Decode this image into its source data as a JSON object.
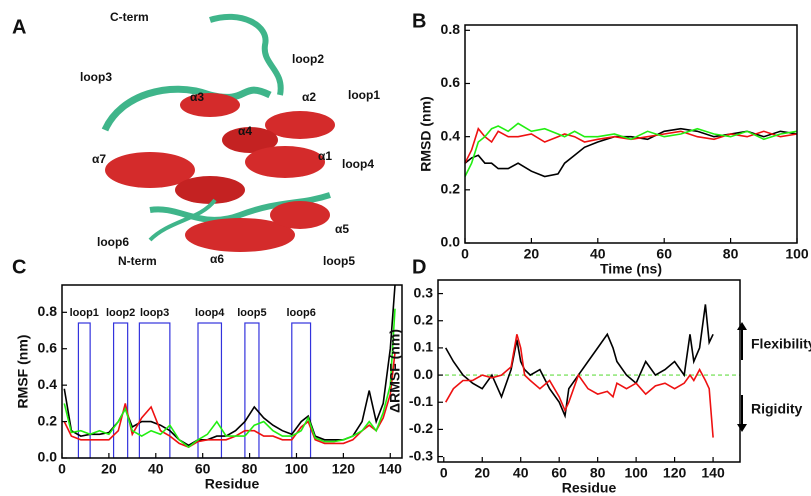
{
  "panel_labels": [
    "A",
    "B",
    "C",
    "D"
  ],
  "structure": {
    "labels": [
      "C-term",
      "loop2",
      "loop3",
      "α3",
      "α2",
      "loop1",
      "α4",
      "α1",
      "α7",
      "loop4",
      "α5",
      "loop6",
      "N-term",
      "α6",
      "loop5"
    ]
  },
  "chart_data": [
    {
      "type": "line",
      "xlabel": "Time (ns)",
      "ylabel": "RMSD (nm)",
      "xlim": [
        0,
        100
      ],
      "ylim": [
        0,
        0.82
      ],
      "xticks": [
        0,
        20,
        40,
        60,
        80,
        100
      ],
      "yticks": [
        {
          "value": 0,
          "label": "0.0"
        },
        0.2,
        0.4,
        0.6,
        0.8
      ],
      "x": [
        0,
        2,
        4,
        6,
        8,
        10,
        13,
        16,
        20,
        24,
        28,
        30,
        33,
        36,
        40,
        45,
        50,
        55,
        60,
        65,
        70,
        75,
        80,
        85,
        90,
        95,
        100
      ],
      "series": [
        {
          "color": "#000000",
          "values": [
            0.3,
            0.32,
            0.33,
            0.3,
            0.3,
            0.28,
            0.28,
            0.3,
            0.27,
            0.25,
            0.26,
            0.3,
            0.33,
            0.36,
            0.38,
            0.4,
            0.4,
            0.39,
            0.42,
            0.43,
            0.42,
            0.4,
            0.41,
            0.42,
            0.4,
            0.42,
            0.41
          ]
        },
        {
          "color": "#ee1111",
          "values": [
            0.3,
            0.35,
            0.43,
            0.4,
            0.38,
            0.42,
            0.4,
            0.4,
            0.41,
            0.38,
            0.4,
            0.41,
            0.4,
            0.38,
            0.39,
            0.4,
            0.39,
            0.4,
            0.41,
            0.42,
            0.4,
            0.39,
            0.41,
            0.4,
            0.42,
            0.4,
            0.41
          ]
        },
        {
          "color": "#22ee11",
          "values": [
            0.25,
            0.3,
            0.38,
            0.4,
            0.43,
            0.44,
            0.42,
            0.45,
            0.42,
            0.43,
            0.41,
            0.4,
            0.42,
            0.4,
            0.4,
            0.41,
            0.39,
            0.42,
            0.4,
            0.41,
            0.43,
            0.41,
            0.4,
            0.42,
            0.39,
            0.41,
            0.42
          ]
        }
      ]
    },
    {
      "type": "line",
      "xlabel": "Residue",
      "ylabel": "RMSF (nm)",
      "xlim": [
        0,
        145
      ],
      "ylim": [
        0,
        0.95
      ],
      "xticks": [
        0,
        20,
        40,
        60,
        80,
        100,
        120,
        140
      ],
      "yticks": [
        {
          "value": 0,
          "label": "0.0"
        },
        0.2,
        0.4,
        0.6,
        0.8
      ],
      "x": [
        1,
        4,
        8,
        12,
        16,
        20,
        24,
        27,
        30,
        34,
        38,
        42,
        46,
        50,
        54,
        58,
        62,
        66,
        70,
        74,
        78,
        82,
        86,
        90,
        94,
        98,
        102,
        105,
        108,
        112,
        116,
        120,
        124,
        128,
        131,
        134,
        137,
        140,
        142
      ],
      "series": [
        {
          "color": "#000000",
          "values": [
            0.38,
            0.15,
            0.12,
            0.13,
            0.13,
            0.14,
            0.2,
            0.27,
            0.17,
            0.2,
            0.2,
            0.18,
            0.15,
            0.1,
            0.07,
            0.1,
            0.1,
            0.12,
            0.12,
            0.15,
            0.2,
            0.28,
            0.22,
            0.18,
            0.15,
            0.13,
            0.2,
            0.23,
            0.12,
            0.1,
            0.1,
            0.1,
            0.12,
            0.2,
            0.37,
            0.2,
            0.3,
            0.6,
            0.95
          ]
        },
        {
          "color": "#ee1111",
          "values": [
            0.2,
            0.12,
            0.1,
            0.1,
            0.1,
            0.1,
            0.15,
            0.3,
            0.13,
            0.22,
            0.28,
            0.15,
            0.12,
            0.08,
            0.06,
            0.09,
            0.1,
            0.1,
            0.1,
            0.12,
            0.15,
            0.15,
            0.12,
            0.12,
            0.1,
            0.1,
            0.17,
            0.2,
            0.1,
            0.08,
            0.08,
            0.08,
            0.1,
            0.15,
            0.18,
            0.15,
            0.22,
            0.35,
            0.58
          ]
        },
        {
          "color": "#22ee11",
          "values": [
            0.3,
            0.14,
            0.15,
            0.13,
            0.15,
            0.13,
            0.2,
            0.27,
            0.15,
            0.12,
            0.15,
            0.13,
            0.18,
            0.1,
            0.06,
            0.1,
            0.13,
            0.2,
            0.12,
            0.12,
            0.12,
            0.18,
            0.2,
            0.15,
            0.12,
            0.12,
            0.15,
            0.22,
            0.11,
            0.09,
            0.09,
            0.1,
            0.12,
            0.15,
            0.2,
            0.15,
            0.25,
            0.4,
            0.82
          ]
        }
      ],
      "regions": [
        {
          "label": "loop1",
          "start": 7,
          "end": 12
        },
        {
          "label": "loop2",
          "start": 22,
          "end": 28
        },
        {
          "label": "loop3",
          "start": 33,
          "end": 46
        },
        {
          "label": "loop4",
          "start": 58,
          "end": 68
        },
        {
          "label": "loop5",
          "start": 78,
          "end": 84
        },
        {
          "label": "loop6",
          "start": 98,
          "end": 106
        }
      ],
      "region_color": "#3333dd"
    },
    {
      "type": "line",
      "xlabel": "Residue",
      "ylabel": "ΔRMSF (nm)",
      "xlim": [
        -3,
        154
      ],
      "ylim": [
        -0.32,
        0.35
      ],
      "xticks": [
        0,
        20,
        40,
        60,
        80,
        100,
        120,
        140
      ],
      "yticks": [
        -0.3,
        -0.2,
        -0.1,
        {
          "value": 0,
          "label": "0.0"
        },
        0.1,
        0.2,
        0.3
      ],
      "x": [
        1,
        5,
        10,
        15,
        20,
        25,
        30,
        35,
        38,
        40,
        42,
        45,
        50,
        55,
        60,
        63,
        65,
        70,
        75,
        80,
        85,
        88,
        90,
        95,
        100,
        105,
        110,
        115,
        120,
        125,
        128,
        130,
        133,
        136,
        138,
        140
      ],
      "series": [
        {
          "color": "#000000",
          "values": [
            0.1,
            0.05,
            0.0,
            -0.03,
            -0.05,
            0.0,
            -0.08,
            0.02,
            0.13,
            0.05,
            0.02,
            0.0,
            0.02,
            -0.05,
            -0.1,
            -0.15,
            -0.05,
            0.0,
            0.05,
            0.1,
            0.15,
            0.1,
            0.05,
            0.0,
            -0.03,
            0.05,
            0.0,
            0.02,
            0.05,
            0.0,
            0.15,
            0.05,
            0.1,
            0.26,
            0.12,
            0.15
          ]
        },
        {
          "color": "#ee1111",
          "values": [
            -0.1,
            -0.05,
            -0.02,
            -0.02,
            0.0,
            -0.01,
            0.0,
            0.03,
            0.15,
            0.1,
            0.0,
            -0.02,
            -0.05,
            -0.02,
            -0.08,
            -0.13,
            -0.1,
            0.0,
            -0.05,
            -0.07,
            -0.06,
            -0.08,
            -0.03,
            -0.05,
            -0.03,
            -0.07,
            -0.04,
            -0.03,
            -0.05,
            -0.03,
            0.0,
            -0.02,
            0.02,
            -0.02,
            -0.05,
            -0.23
          ]
        }
      ],
      "reference_line": {
        "value": 0,
        "color": "#66dd44"
      },
      "annotations": [
        "Flexibility",
        "Rigidity"
      ]
    }
  ]
}
